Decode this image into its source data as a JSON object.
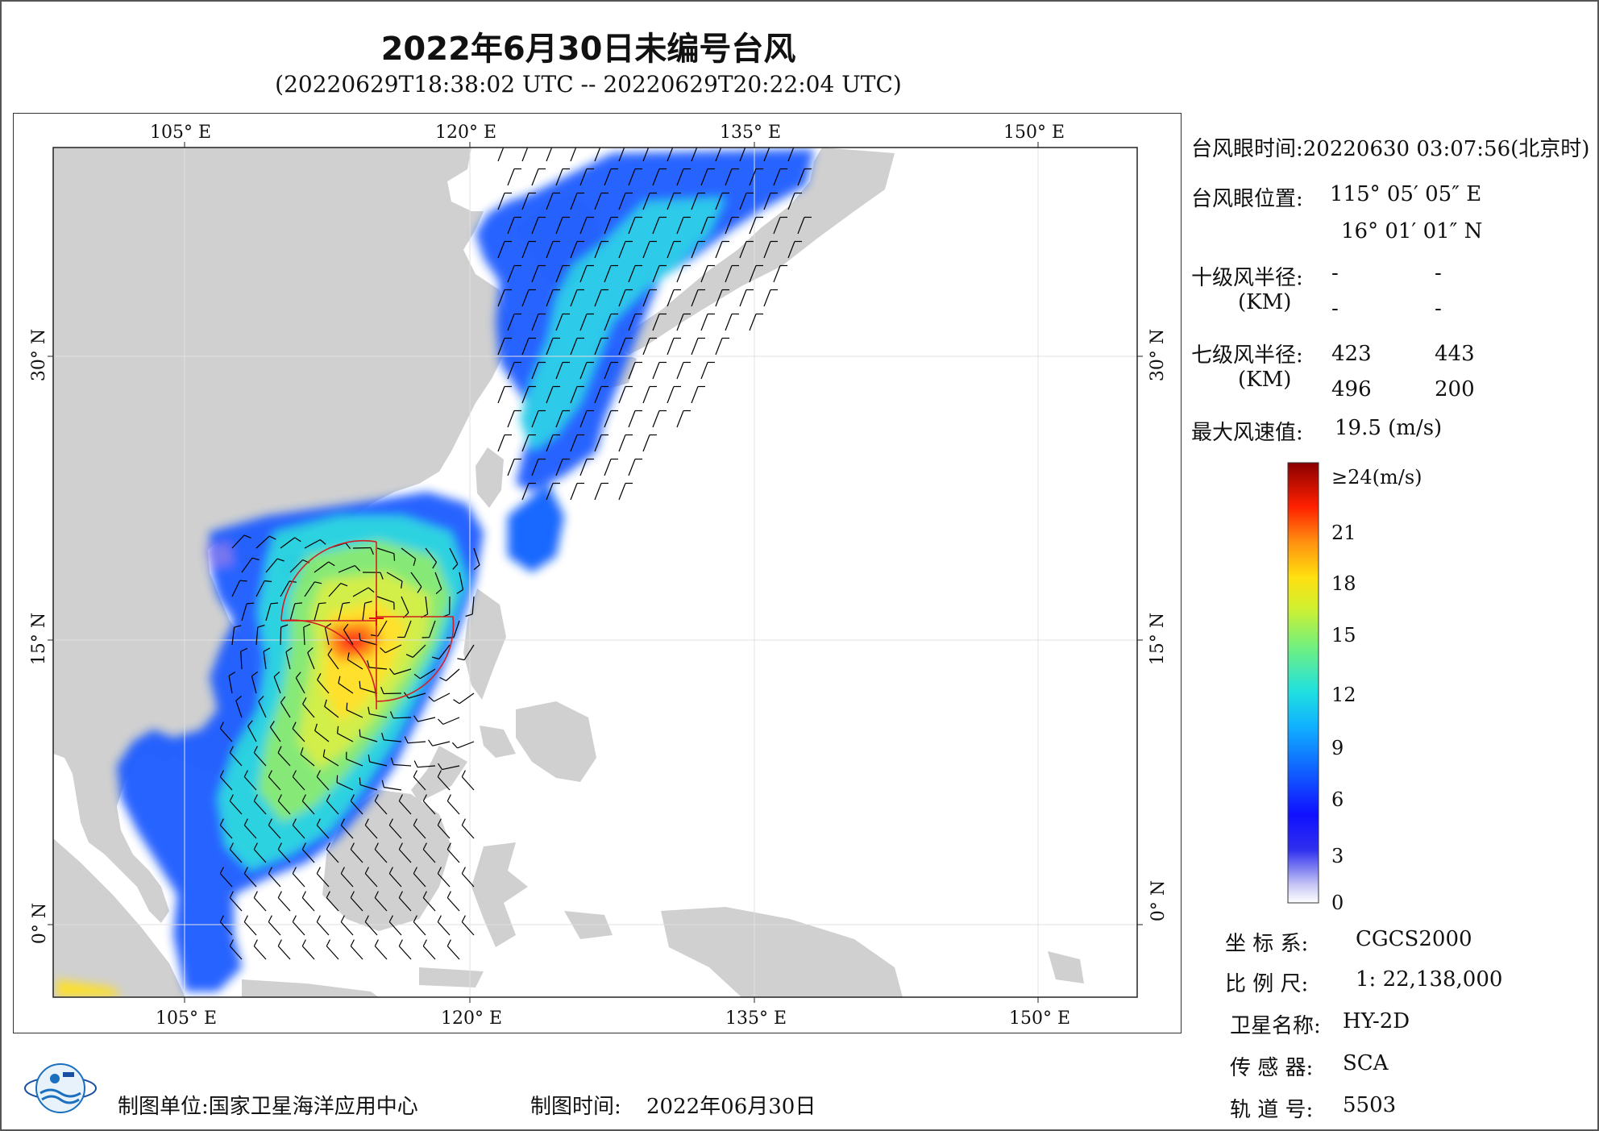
{
  "title": "2022年6月30日未编号台风",
  "subtitle": "(20220629T18:38:02 UTC -- 20220629T20:22:04 UTC)",
  "axes": {
    "lon_ticks": [
      "105° E",
      "120° E",
      "135° E",
      "150° E"
    ],
    "lat_ticks": [
      "30° N",
      "15° N",
      "0° N"
    ]
  },
  "info": {
    "eye_time_label": "台风眼时间:",
    "eye_time_value": "20220630 03:07:56(北京时)",
    "eye_pos_label": "台风眼位置:",
    "eye_lon": "115° 05′ 05″ E",
    "eye_lat": "16° 01′ 01″ N",
    "r10_label": "十级风半径:",
    "r10": [
      "-",
      "-",
      "-",
      "-"
    ],
    "km_label": "(KM)",
    "r7_label": "七级风半径:",
    "r7": [
      "423",
      "443",
      "496",
      "200"
    ],
    "max_wind_label": "最大风速值:",
    "max_wind_value": "19.5 (m/s)"
  },
  "colorbar": {
    "labels": [
      "≥24(m/s)",
      "21",
      "18",
      "15",
      "12",
      "9",
      "6",
      "3",
      "0"
    ],
    "min": 0,
    "max": 24,
    "unit": "m/s"
  },
  "meta": {
    "coord_label": "坐 标 系:",
    "coord_value": "CGCS2000",
    "scale_label": "比 例 尺:",
    "scale_value": "1: 22,138,000",
    "sat_label": "卫星名称:",
    "sat_value": "HY-2D",
    "sensor_label": "传 感 器:",
    "sensor_value": "SCA",
    "orbit_label": "轨 道 号:",
    "orbit_value": "5503"
  },
  "footer": {
    "producer_label": "制图单位:",
    "producer_value": "国家卫星海洋应用中心",
    "time_label": "制图时间:",
    "time_value": "2022年06月30日"
  },
  "colors": {
    "land": "#d0d0d0",
    "radius": "#d02020",
    "frame": "#222222"
  }
}
